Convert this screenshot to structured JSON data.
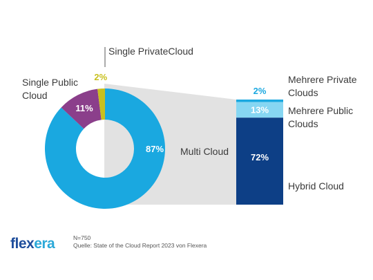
{
  "chart_data": {
    "type": "pie",
    "subtype": "donut-with-stacked-bar-breakdown",
    "donut": {
      "slices": [
        {
          "label": "Multi Cloud",
          "value": 87,
          "display": "87%",
          "color": "#1aa8e0"
        },
        {
          "label": "Single Public Cloud",
          "value": 11,
          "display": "11%",
          "color": "#8b3f8b"
        },
        {
          "label": "Single PrivateCloud",
          "value": 2,
          "display": "2%",
          "color": "#c8c01e"
        }
      ]
    },
    "breakdown": {
      "of": "Multi Cloud",
      "segments": [
        {
          "label": "Mehrere Private Clouds",
          "value": 2,
          "display": "2%",
          "color": "#1aa8e0"
        },
        {
          "label": "Mehrere Public Clouds",
          "value": 13,
          "display": "13%",
          "color": "#86d6f2"
        },
        {
          "label": "Hybrid Cloud",
          "value": 72,
          "display": "72%",
          "color": "#0d3f86"
        }
      ]
    }
  },
  "labels": {
    "single_private_cloud": "Single PrivateCloud",
    "single_public_cloud_1": "Single Public",
    "single_public_cloud_2": "Cloud",
    "multi_cloud": "Multi Cloud",
    "mehrere_private_1": "Mehrere Private",
    "mehrere_private_2": "Clouds",
    "mehrere_public_1": "Mehrere Public",
    "mehrere_public_2": "Clouds",
    "hybrid_cloud": "Hybrid Cloud"
  },
  "footer": {
    "logo_part1": "flex",
    "logo_part2": "era",
    "sample": "N=750",
    "source": "Quelle: State of the Cloud Report 2023 von Flexera"
  },
  "colors": {
    "logo_blue": "#1f4e9c",
    "logo_teal": "#2aa8d8",
    "connector": "#e2e2e2",
    "label_dark": "#3a3a3a"
  }
}
